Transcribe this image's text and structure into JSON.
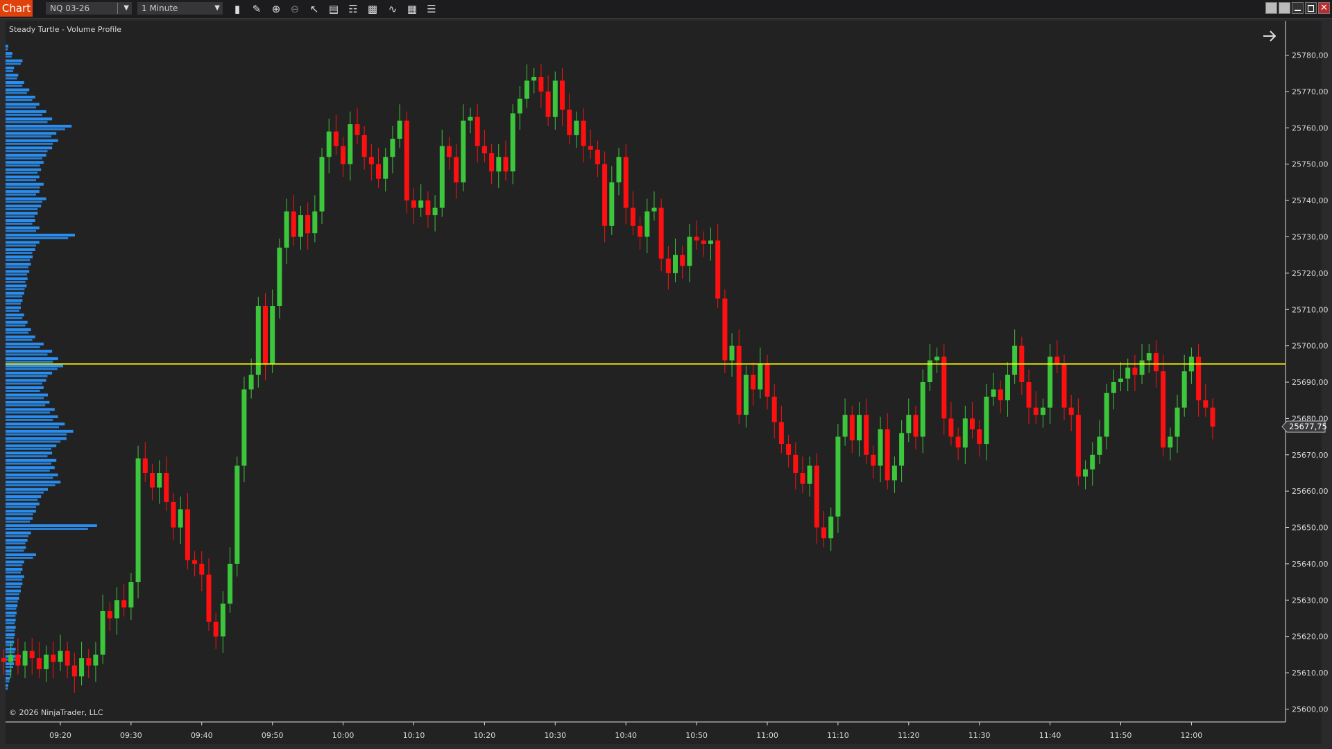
{
  "toolbar": {
    "chart_tab": "Chart",
    "instrument": "NQ 03-26",
    "timeframe": "1 Minute",
    "icons": [
      "bar-type-icon",
      "drawing-pencil-icon",
      "zoom-in-icon",
      "zoom-out-icon",
      "pointer-icon",
      "data-box-icon",
      "chart-trader-icon",
      "volume-profile-icon",
      "strategy-icon",
      "indicators-icon",
      "properties-list-icon"
    ],
    "window_buttons": [
      "tile-left-button",
      "tile-right-button",
      "minimize-button",
      "maximize-button",
      "close-button"
    ],
    "accent_color": "#e0420c"
  },
  "chart": {
    "indicator_label": "Steady Turtle - Volume Profile",
    "copyright": "© 2026 NinjaTrader, LLC",
    "current_price_label": "25677,75",
    "nav_arrow_icon": "arrow-right-icon",
    "colors": {
      "up": "#3cc63c",
      "down": "#ff1010",
      "profile": "#2a8ef0",
      "level_line": "#ffff00",
      "background": "#222222"
    }
  },
  "chart_data": {
    "type": "candlestick",
    "instrument": "NQ 03-26",
    "interval": "1 Minute",
    "first_bar_time": "09:12",
    "open_first": 25614,
    "close": [
      25613,
      25615,
      25612,
      25616,
      25614,
      25611,
      25615,
      25613,
      25616,
      25612,
      25609,
      25614,
      25612,
      25615,
      25627,
      25625,
      25630,
      25628,
      25635,
      25669,
      25665,
      25661,
      25665,
      25657,
      25650,
      25655,
      25641,
      25640,
      25637,
      25624,
      25620,
      25629,
      25640,
      25667,
      25688,
      25692,
      25711,
      25695,
      25711,
      25727,
      25737,
      25730,
      25736,
      25731,
      25737,
      25752,
      25759,
      25755,
      25750,
      25761,
      25758,
      25752,
      25750,
      25746,
      25752,
      25757,
      25762,
      25740,
      25738,
      25740,
      25736,
      25738,
      25755,
      25752,
      25745,
      25762,
      25763,
      25755,
      25753,
      25748,
      25752,
      25748,
      25764,
      25768,
      25773,
      25774,
      25770,
      25763,
      25773,
      25765,
      25758,
      25762,
      25755,
      25754,
      25750,
      25733,
      25745,
      25752,
      25738,
      25733,
      25730,
      25737,
      25738,
      25724,
      25720,
      25725,
      25722,
      25730,
      25729,
      25728,
      25729,
      25713,
      25696,
      25700,
      25681,
      25692,
      25688,
      25695,
      25686,
      25679,
      25673,
      25670,
      25665,
      25662,
      25667,
      25650,
      25647,
      25653,
      25675,
      25681,
      25674,
      25681,
      25670,
      25667,
      25677,
      25663,
      25667,
      25676,
      25681,
      25675,
      25690,
      25696,
      25697,
      25680,
      25675,
      25672,
      25680,
      25677,
      25673,
      25686,
      25688,
      25685,
      25692,
      25700,
      25690,
      25683,
      25681,
      25683,
      25697,
      25695,
      25683,
      25681,
      25664,
      25666,
      25670,
      25675,
      25687,
      25690,
      25691,
      25694,
      25692,
      25696,
      25698,
      25693,
      25672,
      25675,
      25683,
      25693,
      25697,
      25685,
      25683,
      25677.75
    ],
    "last_price": 25677.75,
    "horizontal_level": 25695,
    "volume_profile": {
      "price_top": 25782,
      "price_step": 2,
      "relative_volume": [
        3,
        8,
        20,
        10,
        15,
        22,
        28,
        35,
        40,
        48,
        55,
        78,
        60,
        62,
        55,
        48,
        45,
        42,
        40,
        45,
        40,
        48,
        42,
        38,
        35,
        40,
        82,
        40,
        35,
        32,
        30,
        28,
        26,
        25,
        22,
        20,
        18,
        22,
        26,
        30,
        35,
        45,
        55,
        62,
        68,
        55,
        48,
        45,
        50,
        52,
        58,
        62,
        70,
        80,
        72,
        60,
        55,
        60,
        58,
        62,
        65,
        50,
        42,
        40,
        36,
        32,
        108,
        30,
        26,
        24,
        36,
        22,
        20,
        22,
        20,
        18,
        16,
        14,
        13,
        12,
        12,
        11,
        10,
        12,
        18,
        10,
        7,
        5,
        3
      ]
    },
    "y_ticks": [
      "25780,00",
      "25770,00",
      "25760,00",
      "25750,00",
      "25740,00",
      "25730,00",
      "25720,00",
      "25710,00",
      "25700,00",
      "25690,00",
      "25680,00",
      "25670,00",
      "25660,00",
      "25650,00",
      "25640,00",
      "25630,00",
      "25620,00",
      "25610,00",
      "25600,00"
    ],
    "y_tick_values": [
      25780,
      25770,
      25760,
      25750,
      25740,
      25730,
      25720,
      25710,
      25700,
      25690,
      25680,
      25670,
      25660,
      25650,
      25640,
      25630,
      25620,
      25610,
      25600
    ],
    "x_ticks": [
      "09:20",
      "09:30",
      "09:40",
      "09:50",
      "10:00",
      "10:10",
      "10:20",
      "10:30",
      "10:40",
      "10:50",
      "11:00",
      "11:10",
      "11:20",
      "11:30",
      "11:40",
      "11:50",
      "12:00"
    ],
    "ylim": [
      25598,
      25784
    ],
    "grid": false
  }
}
